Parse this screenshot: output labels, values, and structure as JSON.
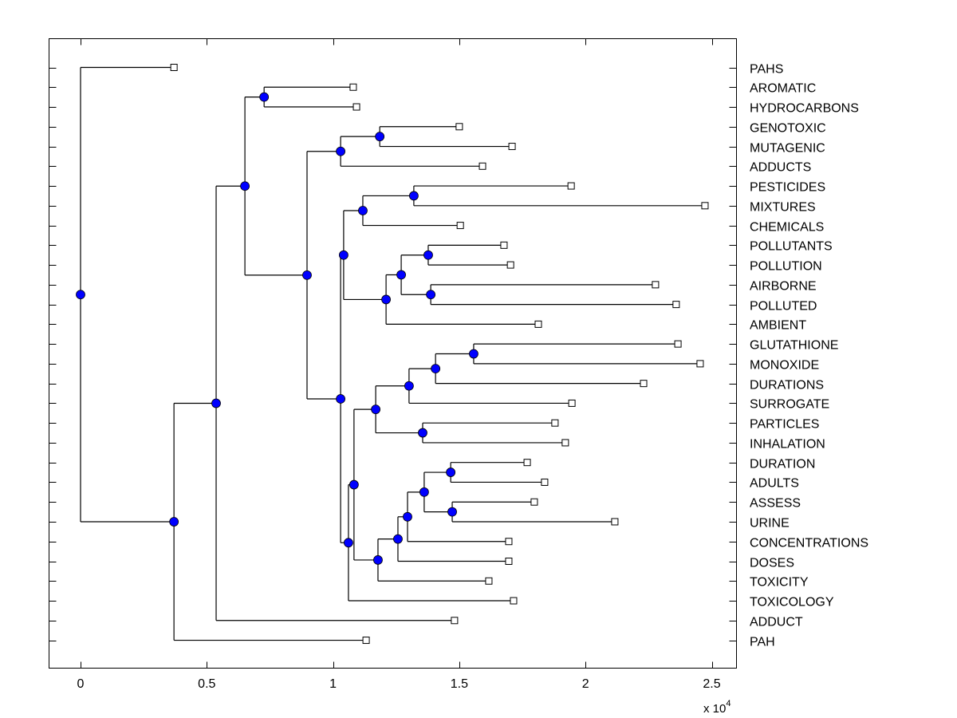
{
  "chart_data": {
    "type": "dendrogram",
    "title": "",
    "xlabel": "",
    "ylabel": "",
    "x_multiplier_label": "x 10",
    "x_multiplier_exponent": "4",
    "xlim": [
      -1250,
      26000
    ],
    "x_ticks": [
      0,
      5000,
      10000,
      15000,
      20000,
      25000
    ],
    "x_tick_labels": [
      "0",
      "0.5",
      "1",
      "1.5",
      "2",
      "2.5"
    ],
    "grid": false,
    "colors": {
      "node_fill": "#0000ff",
      "node_stroke": "#000000",
      "line": "#000000",
      "leaf_fill": "#ffffff"
    },
    "leaves": [
      {
        "label": "PAHS",
        "value": 3700
      },
      {
        "label": "AROMATIC",
        "value": 10800
      },
      {
        "label": "HYDROCARBONS",
        "value": 10930
      },
      {
        "label": "GENOTOXIC",
        "value": 15000
      },
      {
        "label": "MUTAGENIC",
        "value": 17090
      },
      {
        "label": "ADDUCTS",
        "value": 15920
      },
      {
        "label": "PESTICIDES",
        "value": 19430
      },
      {
        "label": "MIXTURES",
        "value": 24730
      },
      {
        "label": "CHEMICALS",
        "value": 15040
      },
      {
        "label": "POLLUTANTS",
        "value": 16770
      },
      {
        "label": "POLLUTION",
        "value": 17030
      },
      {
        "label": "AIRBORNE",
        "value": 22770
      },
      {
        "label": "POLLUTED",
        "value": 23590
      },
      {
        "label": "AMBIENT",
        "value": 18130
      },
      {
        "label": "GLUTATHIONE",
        "value": 23660
      },
      {
        "label": "MONOXIDE",
        "value": 24540
      },
      {
        "label": "DURATIONS",
        "value": 22300
      },
      {
        "label": "SURROGATE",
        "value": 19460
      },
      {
        "label": "PARTICLES",
        "value": 18790
      },
      {
        "label": "INHALATION",
        "value": 19200
      },
      {
        "label": "DURATION",
        "value": 17690
      },
      {
        "label": "ADULTS",
        "value": 18380
      },
      {
        "label": "ASSESS",
        "value": 17970
      },
      {
        "label": "URINE",
        "value": 21160
      },
      {
        "label": "CONCENTRATIONS",
        "value": 16960
      },
      {
        "label": "DOSES",
        "value": 16960
      },
      {
        "label": "TOXICITY",
        "value": 16170
      },
      {
        "label": "TOXICOLOGY",
        "value": 17150
      },
      {
        "label": "ADDUCT",
        "value": 14810
      },
      {
        "label": "PAH",
        "value": 11310
      }
    ],
    "tree": {
      "value": 0,
      "children": [
        {
          "leaf": 0
        },
        {
          "value": 3700,
          "children": [
            {
              "value": 5370,
              "children": [
                {
                  "value": 6510,
                  "children": [
                    {
                      "value": 7270,
                      "children": [
                        {
                          "leaf": 1
                        },
                        {
                          "leaf": 2
                        }
                      ]
                    },
                    {
                      "value": 8970,
                      "children": [
                        {
                          "value": 10300,
                          "children": [
                            {
                              "value": 11850,
                              "children": [
                                {
                                  "leaf": 3
                                },
                                {
                                  "leaf": 4
                                }
                              ]
                            },
                            {
                              "leaf": 5
                            }
                          ]
                        },
                        {
                          "value": 10300,
                          "children": [
                            {
                              "value": 10420,
                              "children": [
                                {
                                  "value": 11180,
                                  "children": [
                                    {
                                      "value": 13200,
                                      "children": [
                                        {
                                          "leaf": 6
                                        },
                                        {
                                          "leaf": 7
                                        }
                                      ]
                                    },
                                    {
                                      "leaf": 8
                                    }
                                  ]
                                },
                                {
                                  "value": 12100,
                                  "children": [
                                    {
                                      "value": 12700,
                                      "children": [
                                        {
                                          "value": 13770,
                                          "children": [
                                            {
                                              "leaf": 9
                                            },
                                            {
                                              "leaf": 10
                                            }
                                          ]
                                        },
                                        {
                                          "value": 13870,
                                          "children": [
                                            {
                                              "leaf": 11
                                            },
                                            {
                                              "leaf": 12
                                            }
                                          ]
                                        }
                                      ]
                                    },
                                    {
                                      "leaf": 13
                                    }
                                  ]
                                }
                              ]
                            },
                            {
                              "value": 10610,
                              "children": [
                                {
                                  "value": 10830,
                                  "children": [
                                    {
                                      "value": 11690,
                                      "children": [
                                        {
                                          "value": 13010,
                                          "children": [
                                            {
                                              "value": 14060,
                                              "children": [
                                                {
                                                  "value": 15570,
                                                  "children": [
                                                    {
                                                      "leaf": 14
                                                    },
                                                    {
                                                      "leaf": 15
                                                    }
                                                  ]
                                                },
                                                {
                                                  "leaf": 16
                                                }
                                              ]
                                            },
                                            {
                                              "leaf": 17
                                            }
                                          ]
                                        },
                                        {
                                          "value": 13550,
                                          "children": [
                                            {
                                              "leaf": 18
                                            },
                                            {
                                              "leaf": 19
                                            }
                                          ]
                                        }
                                      ]
                                    },
                                    {
                                      "value": 11780,
                                      "children": [
                                        {
                                          "value": 12570,
                                          "children": [
                                            {
                                              "value": 12950,
                                              "children": [
                                                {
                                                  "value": 13610,
                                                  "children": [
                                                    {
                                                      "value": 14660,
                                                      "children": [
                                                        {
                                                          "leaf": 20
                                                        },
                                                        {
                                                          "leaf": 21
                                                        }
                                                      ]
                                                    },
                                                    {
                                                      "value": 14720,
                                                      "children": [
                                                        {
                                                          "leaf": 22
                                                        },
                                                        {
                                                          "leaf": 23
                                                        }
                                                      ]
                                                    }
                                                  ]
                                                },
                                                {
                                                  "leaf": 24
                                                }
                                              ]
                                            },
                                            {
                                              "leaf": 25
                                            }
                                          ]
                                        },
                                        {
                                          "leaf": 26
                                        }
                                      ]
                                    }
                                  ]
                                },
                                {
                                  "leaf": 27
                                }
                              ]
                            }
                          ]
                        }
                      ]
                    }
                  ]
                },
                {
                  "leaf": 28
                }
              ]
            },
            {
              "leaf": 29
            }
          ]
        }
      ]
    }
  }
}
